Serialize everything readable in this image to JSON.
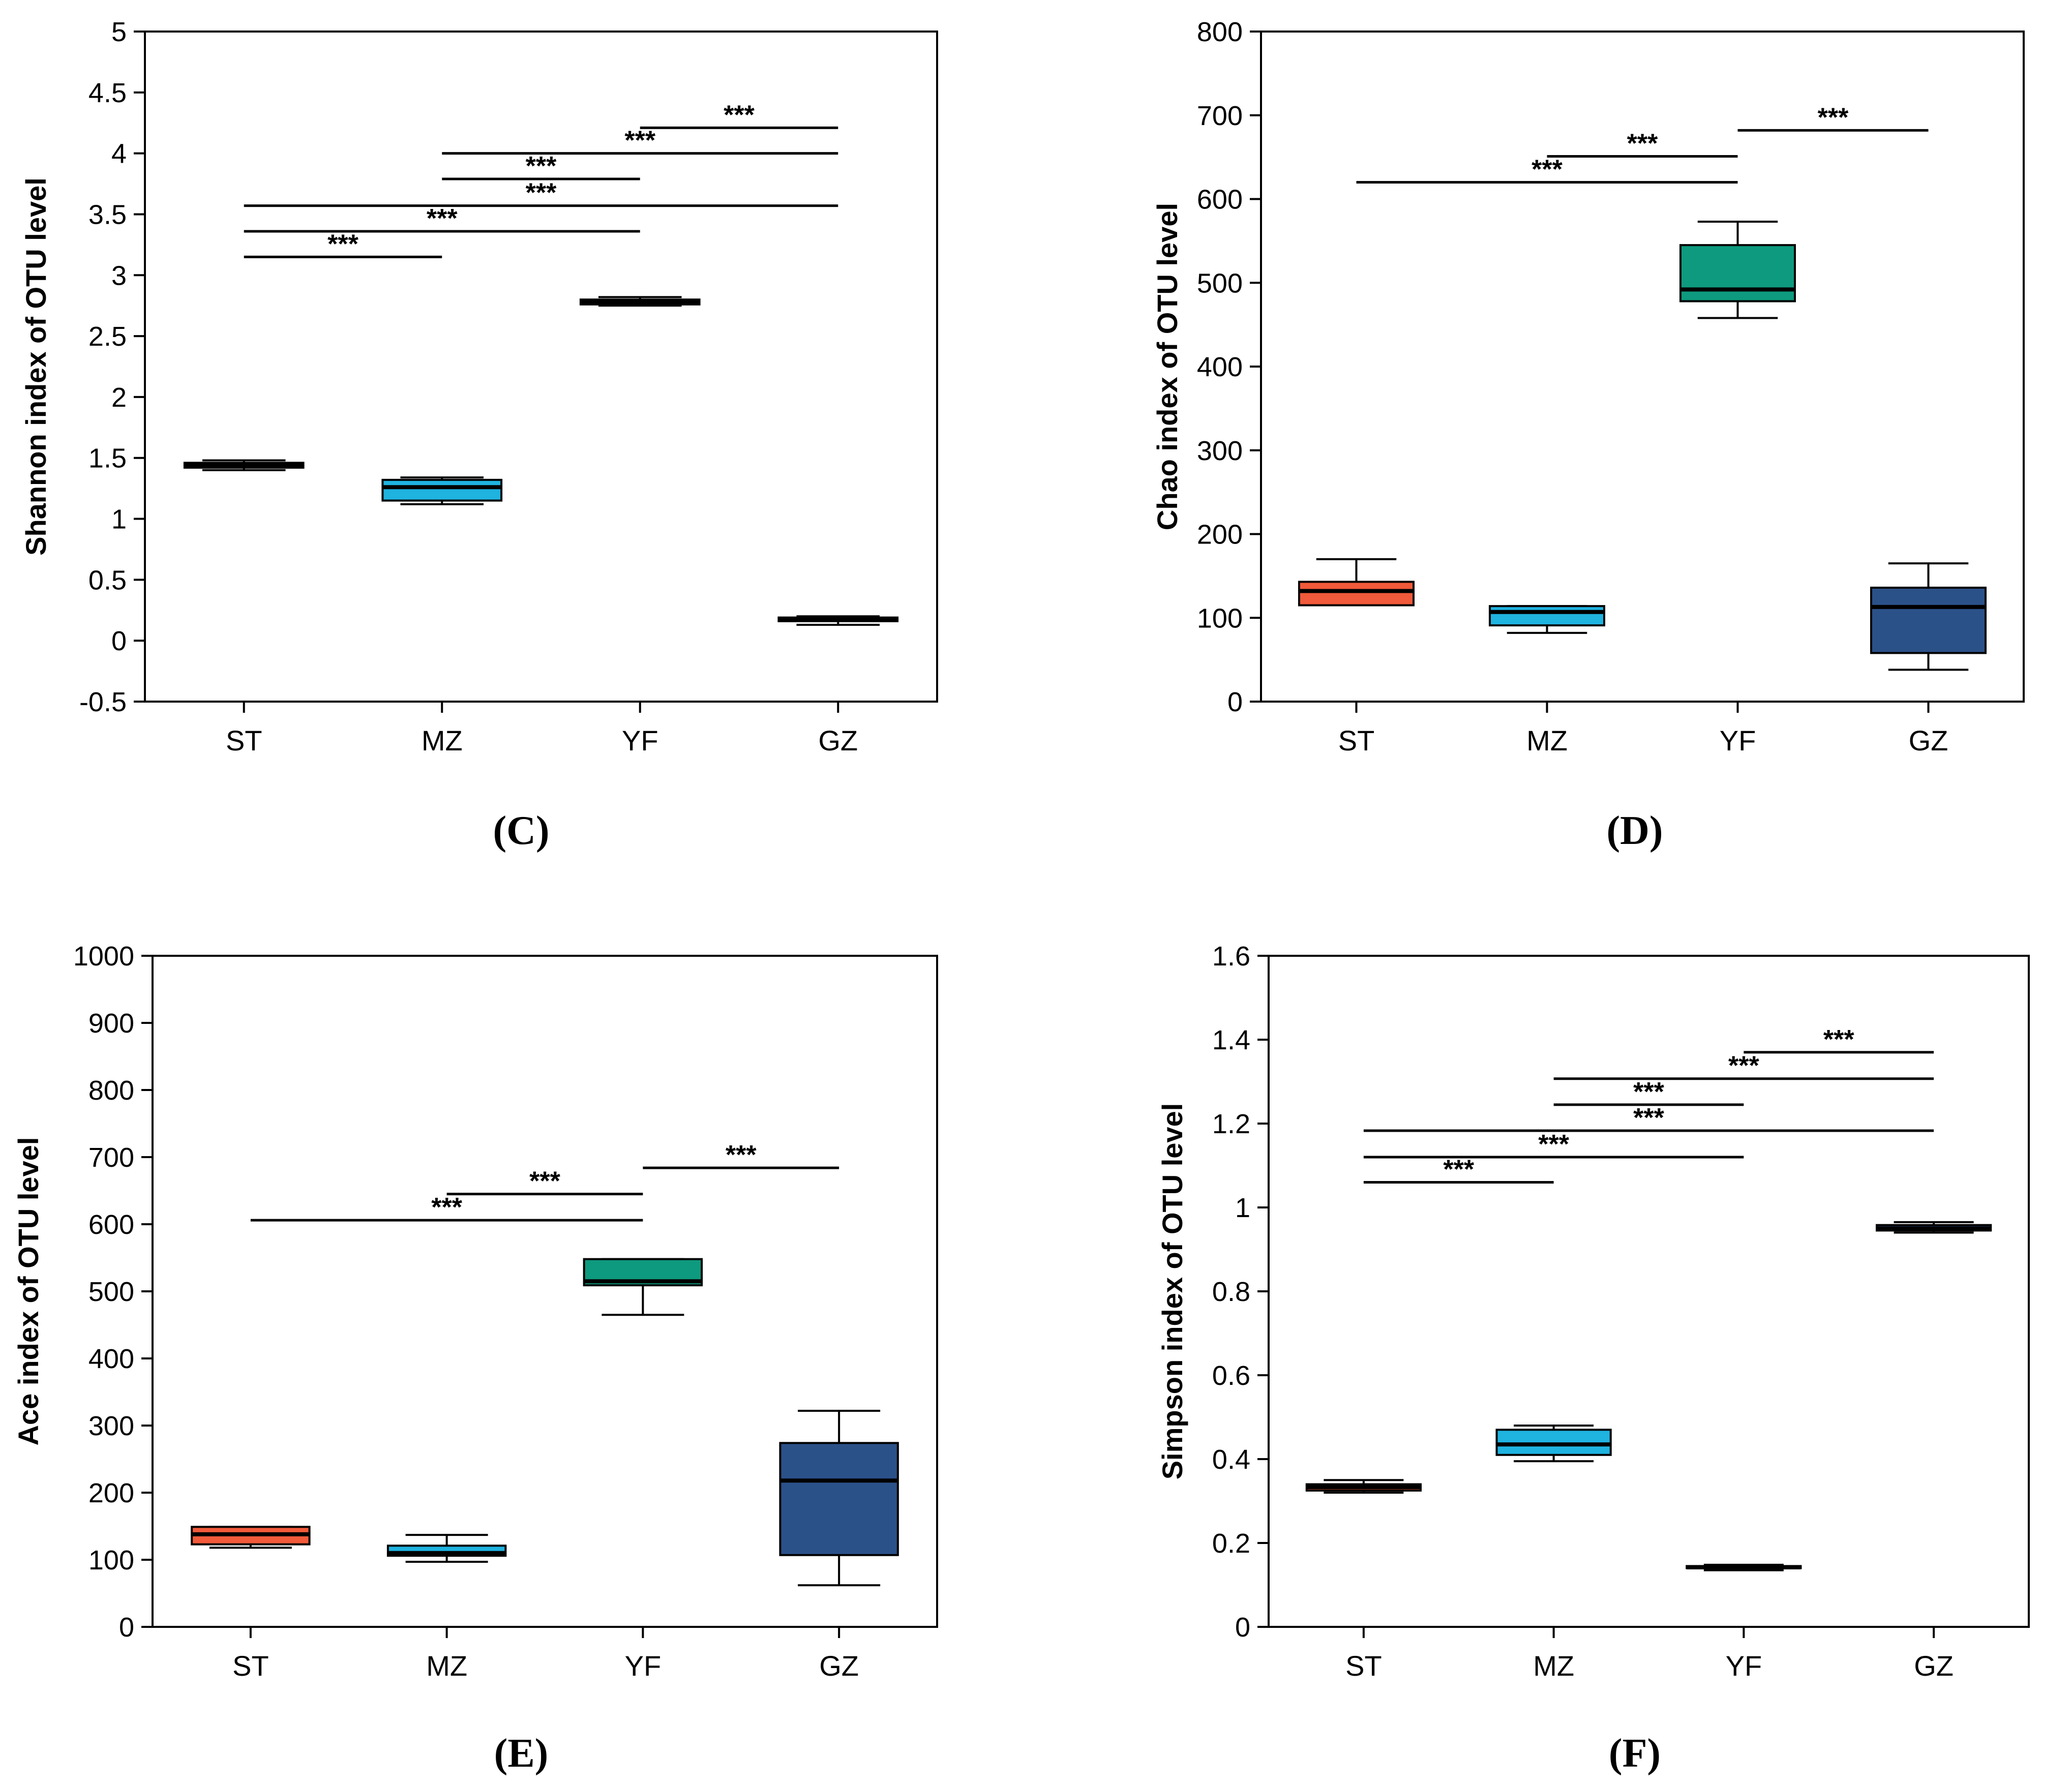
{
  "colors": {
    "ST": "#f15a3a",
    "MZ": "#1fb3e0",
    "YF": "#0e9a7e",
    "GZ": "#2b5189",
    "ink": "#000000"
  },
  "chart_data": [
    {
      "type": "box",
      "panel": "(C)",
      "ylabel": "Shannon index of OTU level",
      "categories": [
        "ST",
        "MZ",
        "YF",
        "GZ"
      ],
      "ylim": [
        -0.5,
        5
      ],
      "yticks": [
        "-0.5",
        "0",
        "0.5",
        "1",
        "1.5",
        "2",
        "2.5",
        "3",
        "3.5",
        "4",
        "4.5",
        "5"
      ],
      "yticks_values": [
        -0.5,
        0,
        0.5,
        1,
        1.5,
        2,
        2.5,
        3,
        3.5,
        4,
        4.5,
        5
      ],
      "boxes": [
        {
          "group": "ST",
          "min": 1.4,
          "q1": 1.42,
          "median": 1.44,
          "q3": 1.46,
          "max": 1.48
        },
        {
          "group": "MZ",
          "min": 1.12,
          "q1": 1.15,
          "median": 1.26,
          "q3": 1.32,
          "max": 1.34
        },
        {
          "group": "YF",
          "min": 2.75,
          "q1": 2.76,
          "median": 2.78,
          "q3": 2.8,
          "max": 2.82
        },
        {
          "group": "GZ",
          "min": 0.13,
          "q1": 0.16,
          "median": 0.18,
          "q3": 0.19,
          "max": 0.2
        }
      ],
      "significance": [
        {
          "from": "ST",
          "to": "MZ",
          "y": 3.15,
          "label": "***"
        },
        {
          "from": "ST",
          "to": "YF",
          "y": 3.36,
          "label": "***"
        },
        {
          "from": "ST",
          "to": "GZ",
          "y": 3.57,
          "label": "***"
        },
        {
          "from": "MZ",
          "to": "YF",
          "y": 3.79,
          "label": "***"
        },
        {
          "from": "MZ",
          "to": "GZ",
          "y": 4.0,
          "label": "***"
        },
        {
          "from": "YF",
          "to": "GZ",
          "y": 4.21,
          "label": "***"
        }
      ]
    },
    {
      "type": "box",
      "panel": "(D)",
      "ylabel": "Chao index of OTU level",
      "categories": [
        "ST",
        "MZ",
        "YF",
        "GZ"
      ],
      "ylim": [
        0,
        800
      ],
      "yticks": [
        "0",
        "100",
        "200",
        "300",
        "400",
        "500",
        "600",
        "700",
        "800"
      ],
      "yticks_values": [
        0,
        100,
        200,
        300,
        400,
        500,
        600,
        700,
        800
      ],
      "boxes": [
        {
          "group": "ST",
          "min": 115,
          "q1": 115,
          "median": 132,
          "q3": 143,
          "max": 170
        },
        {
          "group": "MZ",
          "min": 82,
          "q1": 91,
          "median": 107,
          "q3": 114,
          "max": 114
        },
        {
          "group": "YF",
          "min": 458,
          "q1": 478,
          "median": 492,
          "q3": 545,
          "max": 573
        },
        {
          "group": "GZ",
          "min": 38,
          "q1": 58,
          "median": 113,
          "q3": 136,
          "max": 165
        }
      ],
      "significance": [
        {
          "from": "ST",
          "to": "YF",
          "y": 620,
          "label": "***"
        },
        {
          "from": "MZ",
          "to": "YF",
          "y": 651,
          "label": "***"
        },
        {
          "from": "YF",
          "to": "GZ",
          "y": 682,
          "label": "***"
        }
      ]
    },
    {
      "type": "box",
      "panel": "(E)",
      "ylabel": "Ace index of OTU level",
      "categories": [
        "ST",
        "MZ",
        "YF",
        "GZ"
      ],
      "ylim": [
        0,
        1000
      ],
      "yticks": [
        "0",
        "100",
        "200",
        "300",
        "400",
        "500",
        "600",
        "700",
        "800",
        "900",
        "1000"
      ],
      "yticks_values": [
        0,
        100,
        200,
        300,
        400,
        500,
        600,
        700,
        800,
        900,
        1000
      ],
      "boxes": [
        {
          "group": "ST",
          "min": 118,
          "q1": 123,
          "median": 138,
          "q3": 149,
          "max": 149
        },
        {
          "group": "MZ",
          "min": 97,
          "q1": 106,
          "median": 110,
          "q3": 121,
          "max": 137
        },
        {
          "group": "YF",
          "min": 465,
          "q1": 509,
          "median": 515,
          "q3": 548,
          "max": 548
        },
        {
          "group": "GZ",
          "min": 62,
          "q1": 107,
          "median": 218,
          "q3": 274,
          "max": 322
        }
      ],
      "significance": [
        {
          "from": "ST",
          "to": "YF",
          "y": 606,
          "label": "***"
        },
        {
          "from": "MZ",
          "to": "YF",
          "y": 645,
          "label": "***"
        },
        {
          "from": "YF",
          "to": "GZ",
          "y": 684,
          "label": "***"
        }
      ]
    },
    {
      "type": "box",
      "panel": "(F)",
      "ylabel": "Simpson index of OTU level",
      "categories": [
        "ST",
        "MZ",
        "YF",
        "GZ"
      ],
      "ylim": [
        0,
        1.6
      ],
      "yticks": [
        "0",
        "0.2",
        "0.4",
        "0.6",
        "0.8",
        "1",
        "1.2",
        "1.4",
        "1.6"
      ],
      "yticks_values": [
        0,
        0.2,
        0.4,
        0.6,
        0.8,
        1,
        1.2,
        1.4,
        1.6
      ],
      "boxes": [
        {
          "group": "ST",
          "min": 0.32,
          "q1": 0.325,
          "median": 0.333,
          "q3": 0.34,
          "max": 0.35
        },
        {
          "group": "MZ",
          "min": 0.395,
          "q1": 0.41,
          "median": 0.435,
          "q3": 0.47,
          "max": 0.48
        },
        {
          "group": "YF",
          "min": 0.135,
          "q1": 0.14,
          "median": 0.142,
          "q3": 0.145,
          "max": 0.148
        },
        {
          "group": "GZ",
          "min": 0.94,
          "q1": 0.945,
          "median": 0.95,
          "q3": 0.958,
          "max": 0.965
        }
      ],
      "significance": [
        {
          "from": "ST",
          "to": "MZ",
          "y": 1.06,
          "label": "***"
        },
        {
          "from": "ST",
          "to": "YF",
          "y": 1.12,
          "label": "***"
        },
        {
          "from": "ST",
          "to": "GZ",
          "y": 1.183,
          "label": "***"
        },
        {
          "from": "MZ",
          "to": "YF",
          "y": 1.245,
          "label": "***"
        },
        {
          "from": "MZ",
          "to": "GZ",
          "y": 1.307,
          "label": "***"
        },
        {
          "from": "YF",
          "to": "GZ",
          "y": 1.37,
          "label": "***"
        }
      ]
    }
  ]
}
